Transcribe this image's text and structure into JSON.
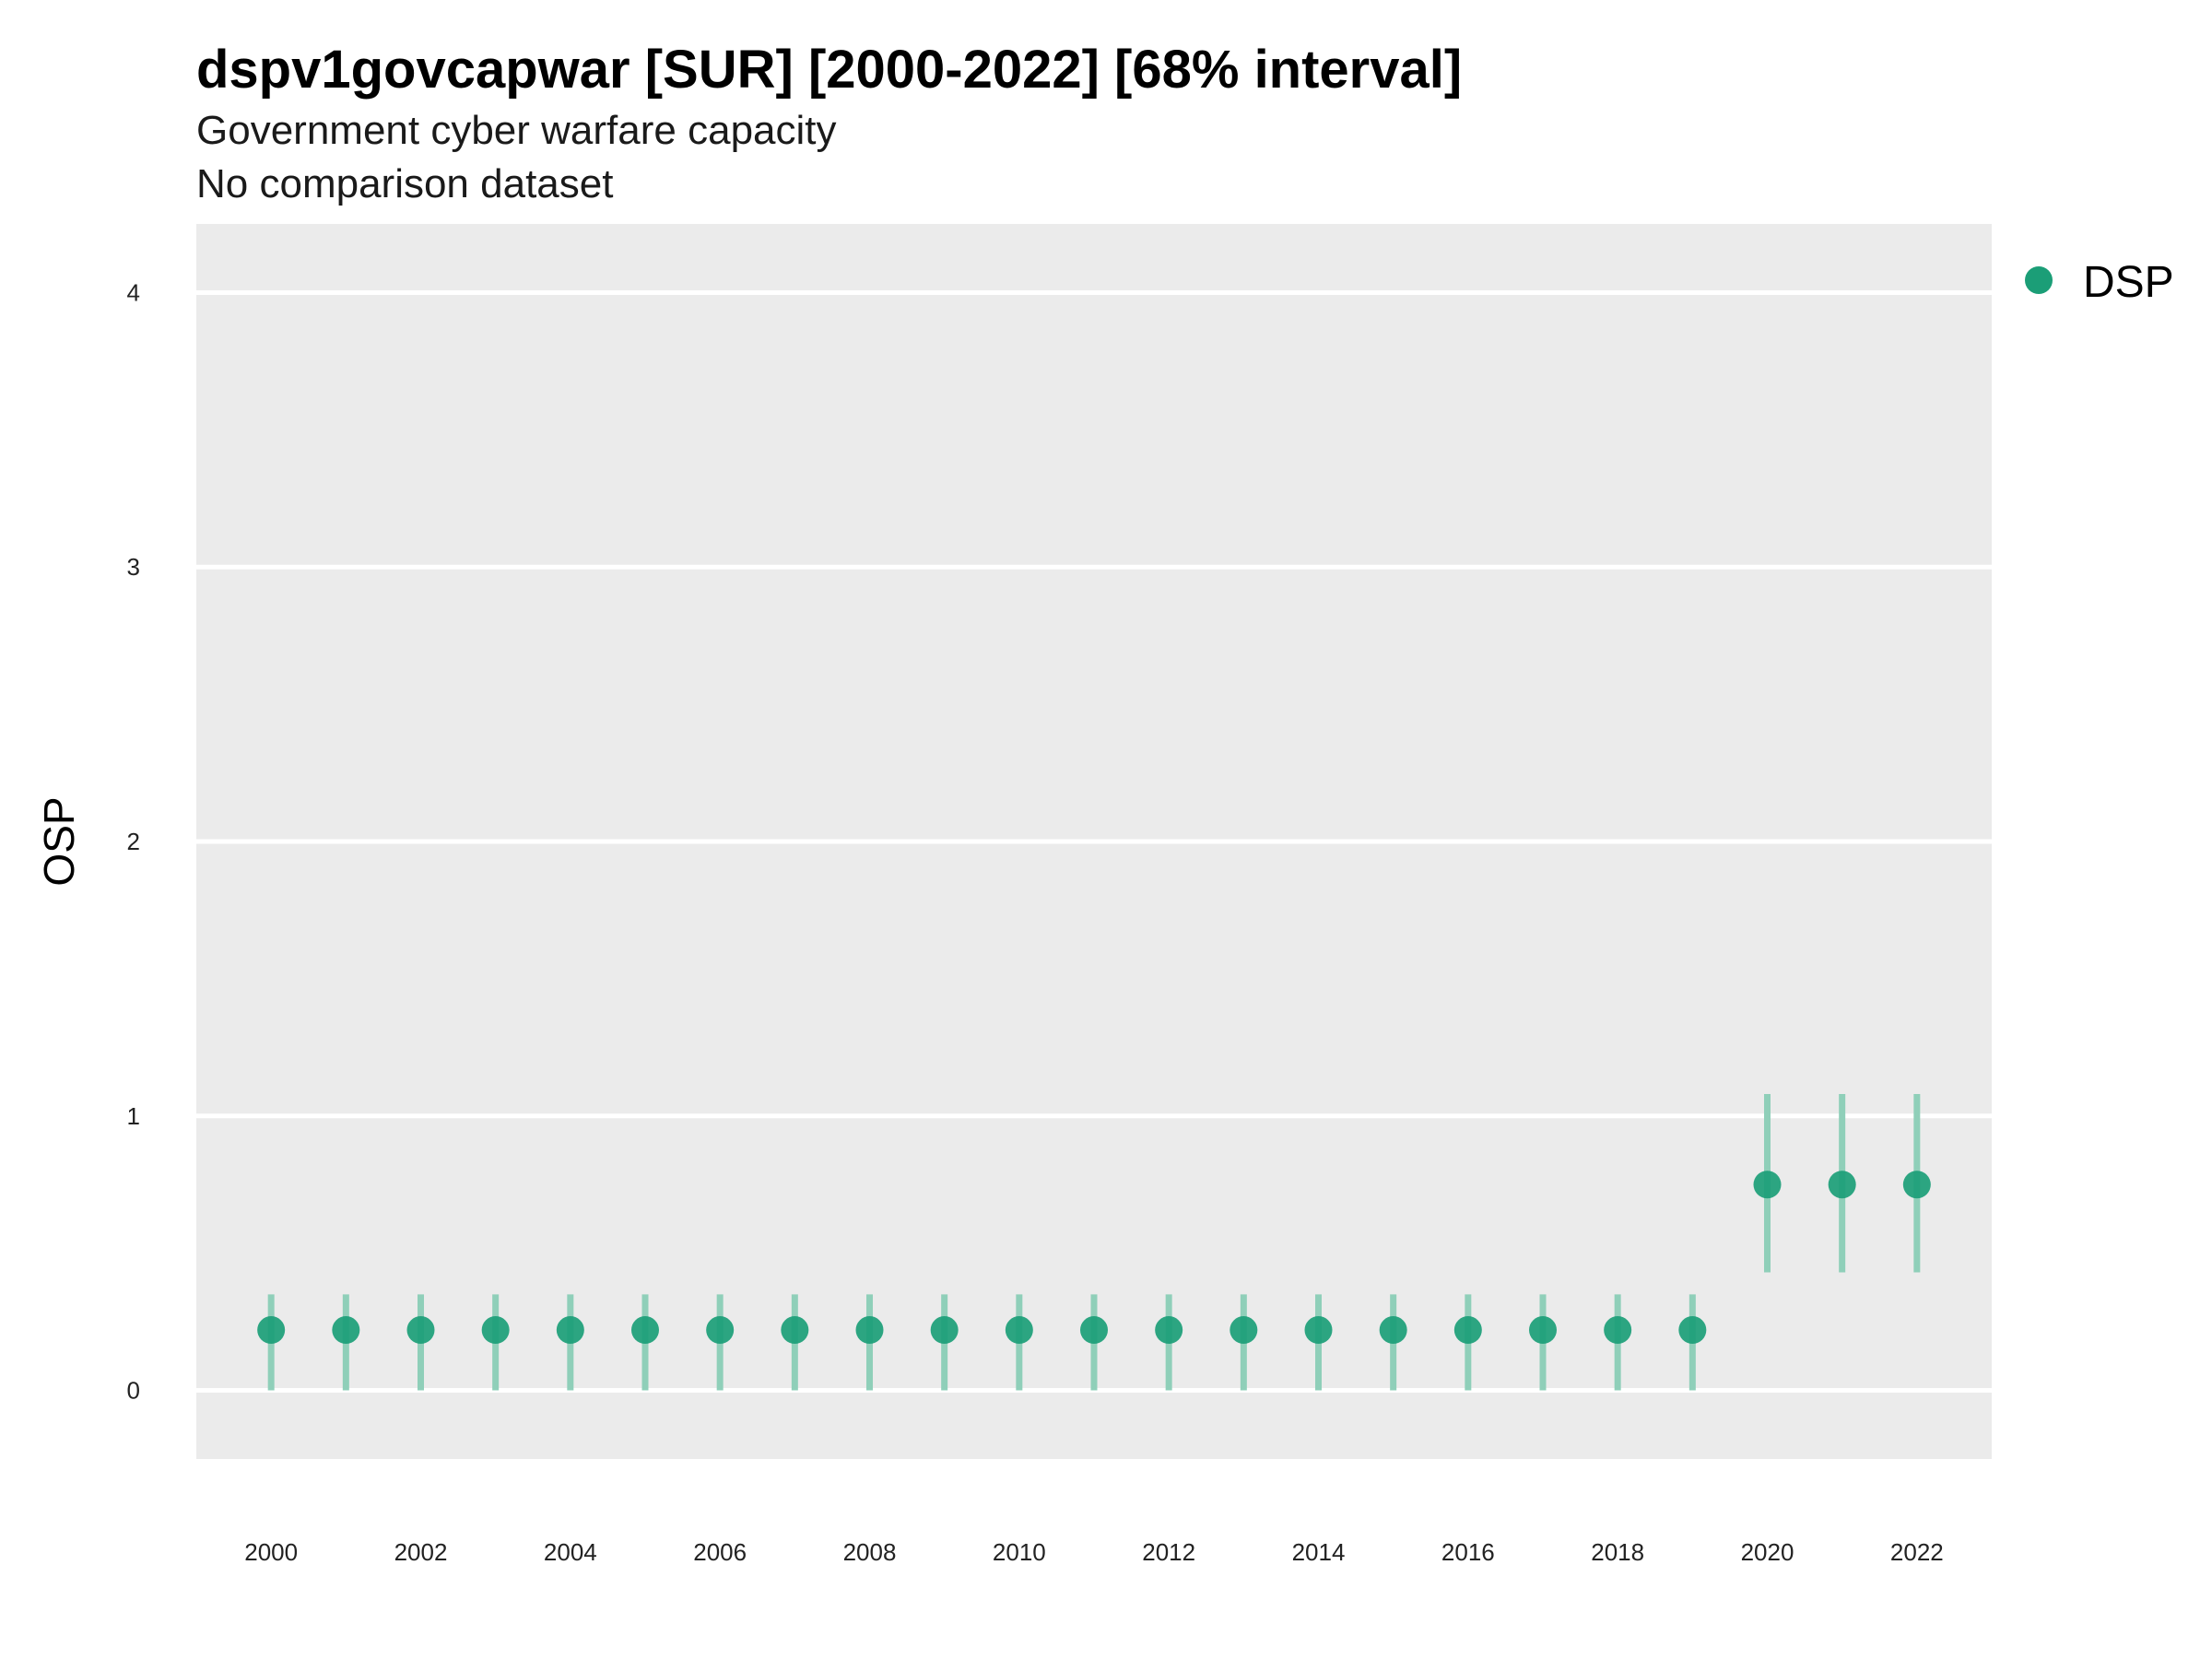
{
  "title": "dspv1govcapwar [SUR] [2000-2022] [68% interval]",
  "subtitle": "Government cyber warfare capacity",
  "caption": "No comparison dataset",
  "colors": {
    "panel": "#ebebeb",
    "grid": "#ffffff",
    "point": "#1b9e77",
    "interval": "#8fcfb9"
  },
  "chart_data": {
    "type": "scatter",
    "title": "dspv1govcapwar [SUR] [2000-2022] [68% interval]",
    "subtitle": "Government cyber warfare capacity",
    "xlabel": "",
    "ylabel": "OSP",
    "xlim": [
      1999,
      2023
    ],
    "ylim": [
      -0.25,
      4.25
    ],
    "y_ticks": [
      0,
      1,
      2,
      3,
      4
    ],
    "x_ticks": [
      2000,
      2002,
      2004,
      2006,
      2008,
      2010,
      2012,
      2014,
      2016,
      2018,
      2020,
      2022
    ],
    "grid": true,
    "legend_position": "right",
    "series": [
      {
        "name": "DSP",
        "color": "#1b9e77",
        "x": [
          2000,
          2001,
          2002,
          2003,
          2004,
          2005,
          2006,
          2007,
          2008,
          2009,
          2010,
          2011,
          2012,
          2013,
          2014,
          2015,
          2016,
          2017,
          2018,
          2019,
          2020,
          2021,
          2022
        ],
        "y": [
          0.22,
          0.22,
          0.22,
          0.22,
          0.22,
          0.22,
          0.22,
          0.22,
          0.22,
          0.22,
          0.22,
          0.22,
          0.22,
          0.22,
          0.22,
          0.22,
          0.22,
          0.22,
          0.22,
          0.22,
          0.75,
          0.75,
          0.75
        ],
        "lower": [
          0.0,
          0.0,
          0.0,
          0.0,
          0.0,
          0.0,
          0.0,
          0.0,
          0.0,
          0.0,
          0.0,
          0.0,
          0.0,
          0.0,
          0.0,
          0.0,
          0.0,
          0.0,
          0.0,
          0.0,
          0.43,
          0.43,
          0.43
        ],
        "upper": [
          0.35,
          0.35,
          0.35,
          0.35,
          0.35,
          0.35,
          0.35,
          0.35,
          0.35,
          0.35,
          0.35,
          0.35,
          0.35,
          0.35,
          0.35,
          0.35,
          0.35,
          0.35,
          0.35,
          0.35,
          1.08,
          1.08,
          1.08
        ]
      }
    ]
  }
}
